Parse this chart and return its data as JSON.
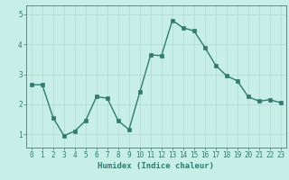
{
  "x": [
    0,
    1,
    2,
    3,
    4,
    5,
    6,
    7,
    8,
    9,
    10,
    11,
    12,
    13,
    14,
    15,
    16,
    17,
    18,
    19,
    20,
    21,
    22,
    23
  ],
  "y": [
    2.65,
    2.65,
    1.55,
    0.95,
    1.1,
    1.45,
    2.25,
    2.2,
    1.45,
    1.15,
    2.4,
    3.65,
    3.62,
    4.8,
    4.55,
    4.45,
    3.9,
    3.3,
    2.95,
    2.78,
    2.25,
    2.1,
    2.15,
    2.05
  ],
  "line_color": "#2e7d6e",
  "marker": "s",
  "marker_size": 2.2,
  "bg_color": "#c8eee8",
  "grid_color": "#b0d8d2",
  "xlabel": "Humidex (Indice chaleur)",
  "xlim_left": -0.5,
  "xlim_right": 23.5,
  "ylim_bottom": 0.55,
  "ylim_top": 5.3,
  "yticks": [
    1,
    2,
    3,
    4,
    5
  ],
  "xticks": [
    0,
    1,
    2,
    3,
    4,
    5,
    6,
    7,
    8,
    9,
    10,
    11,
    12,
    13,
    14,
    15,
    16,
    17,
    18,
    19,
    20,
    21,
    22,
    23
  ],
  "xlabel_fontsize": 6.5,
  "tick_fontsize": 5.5,
  "linewidth": 1.0,
  "spine_color": "#507878",
  "tick_color": "#507878",
  "label_color": "#2e7d6e"
}
